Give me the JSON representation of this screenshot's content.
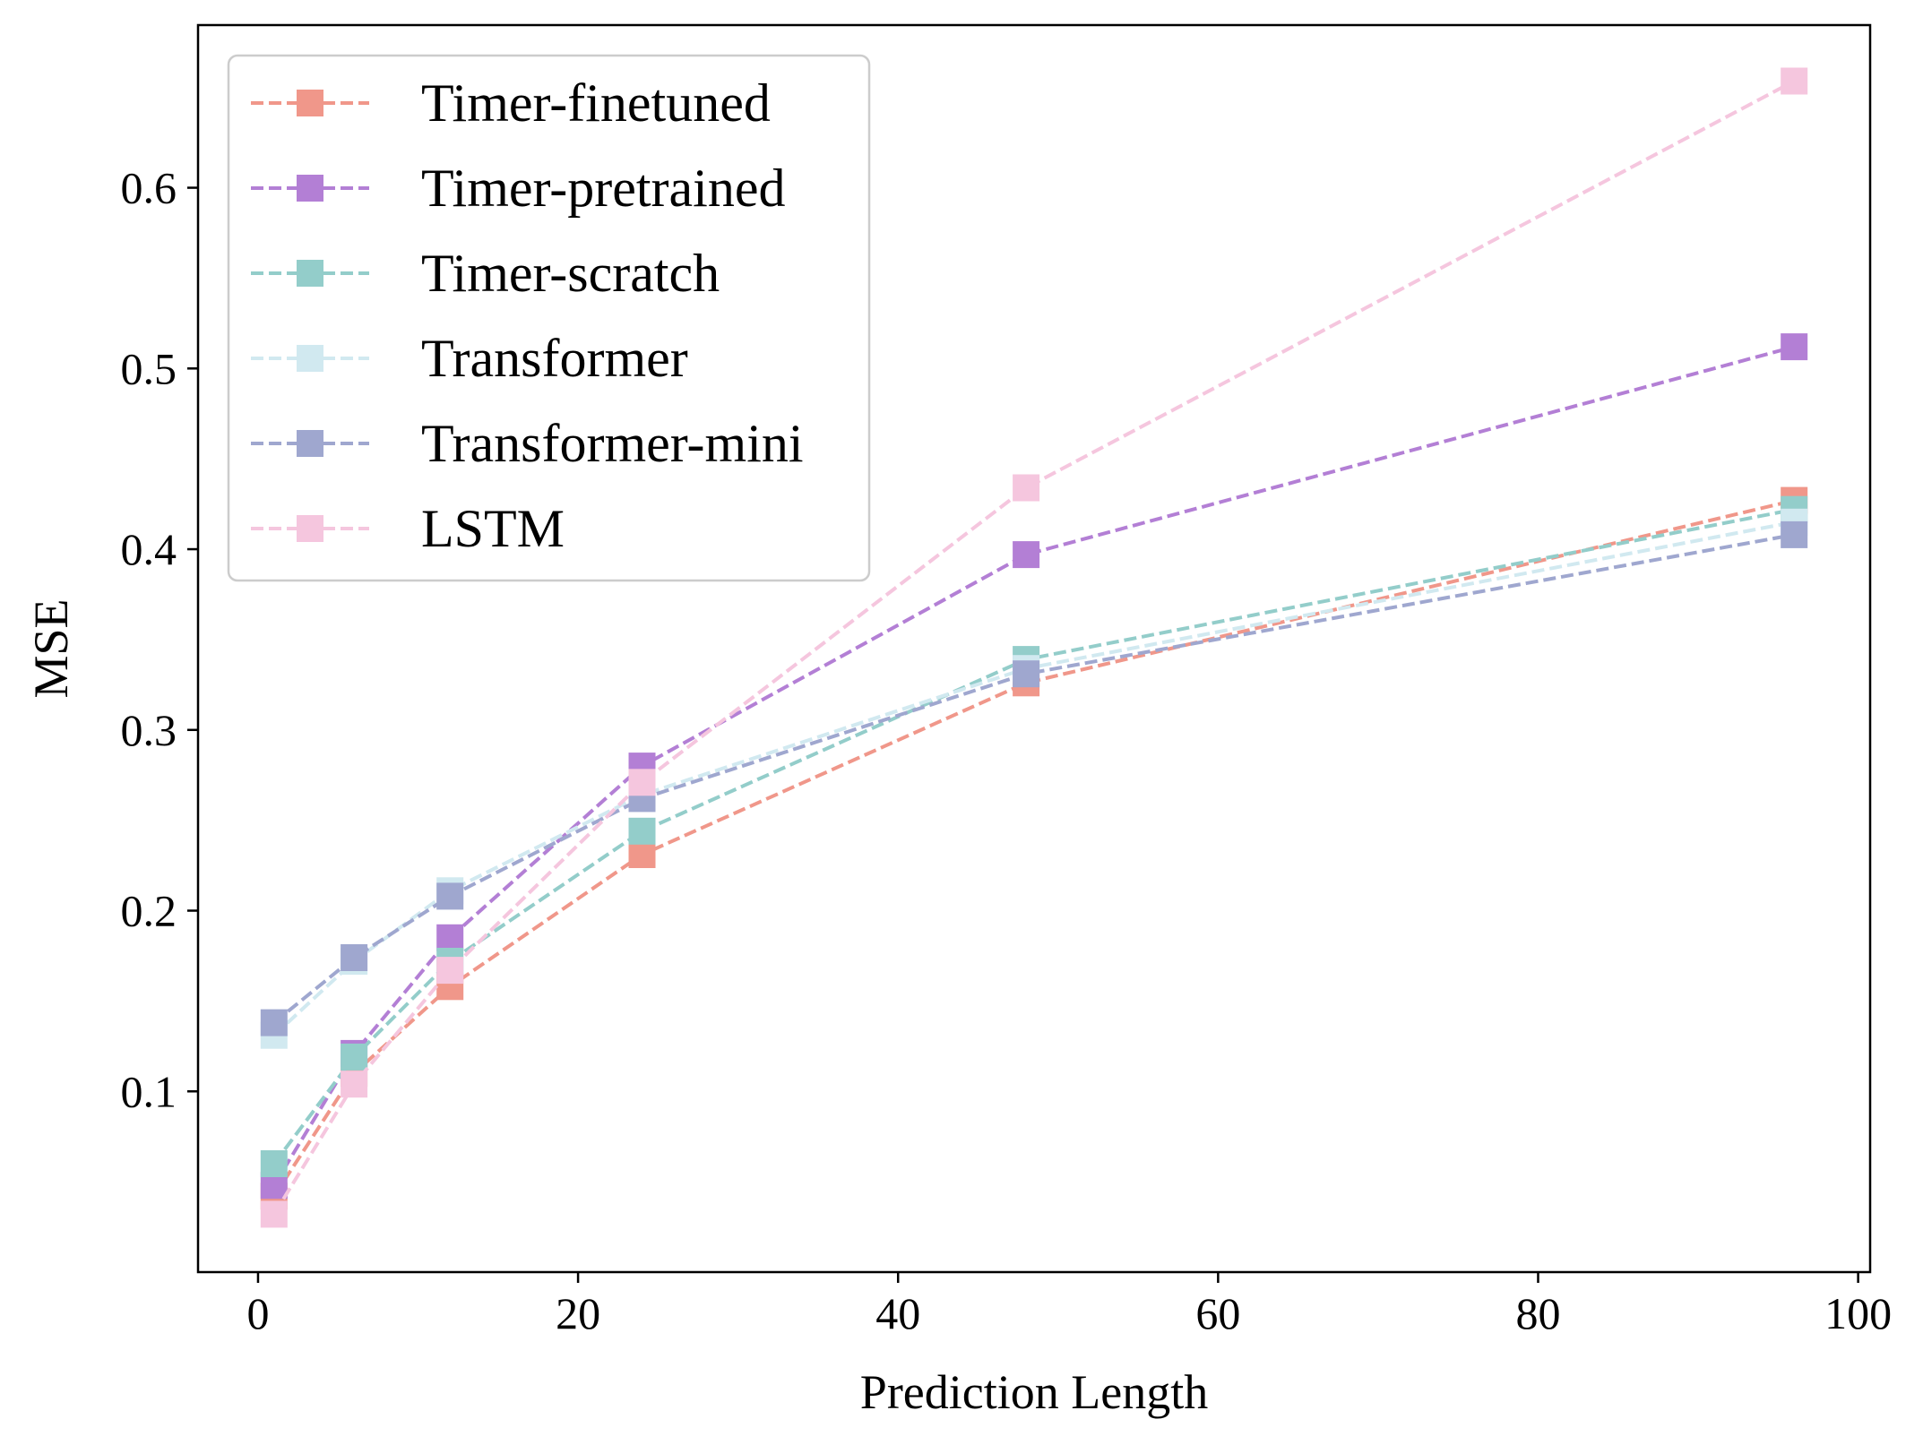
{
  "chart_data": {
    "type": "line",
    "title": "",
    "xlabel": "Prediction Length",
    "ylabel": "MSE",
    "xlim": [
      -3.75,
      100.75
    ],
    "ylim": [
      0.0,
      0.69
    ],
    "xticks": [
      0,
      20,
      40,
      60,
      80,
      100
    ],
    "yticks": [
      0.1,
      0.2,
      0.3,
      0.4,
      0.5,
      0.6
    ],
    "xtick_labels": [
      "0",
      "20",
      "40",
      "60",
      "80",
      "100"
    ],
    "ytick_labels": [
      "0.1",
      "0.2",
      "0.3",
      "0.4",
      "0.5",
      "0.6"
    ],
    "legend_position": "upper-left",
    "x": [
      1,
      6,
      12,
      24,
      48,
      96
    ],
    "series": [
      {
        "name": "Timer-finetuned",
        "color": "#F0978A",
        "values": [
          0.042,
          0.11,
          0.158,
          0.231,
          0.326,
          0.427
        ]
      },
      {
        "name": "Timer-pretrained",
        "color": "#B37FD5",
        "values": [
          0.048,
          0.121,
          0.185,
          0.28,
          0.397,
          0.512
        ]
      },
      {
        "name": "Timer-scratch",
        "color": "#93CDCA",
        "values": [
          0.06,
          0.119,
          0.172,
          0.244,
          0.339,
          0.422
        ]
      },
      {
        "name": "Transformer",
        "color": "#D1E9F0",
        "values": [
          0.131,
          0.172,
          0.211,
          0.264,
          0.334,
          0.415
        ]
      },
      {
        "name": "Transformer-mini",
        "color": "#9FA7CF",
        "values": [
          0.138,
          0.174,
          0.208,
          0.262,
          0.331,
          0.408
        ]
      },
      {
        "name": "LSTM",
        "color": "#F5C6DE",
        "values": [
          0.032,
          0.104,
          0.167,
          0.271,
          0.434,
          0.659
        ]
      }
    ]
  }
}
